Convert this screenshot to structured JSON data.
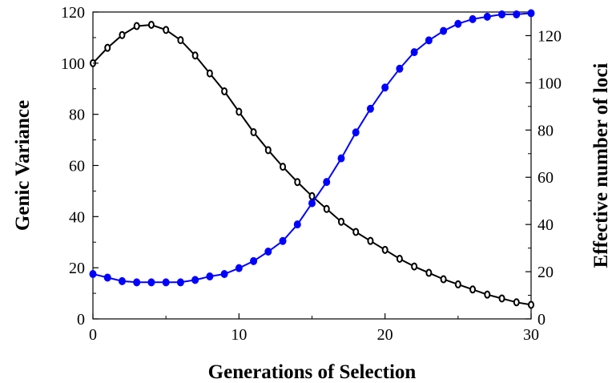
{
  "chart_data": {
    "type": "line",
    "xlabel": "Generations of Selection",
    "ylabel": "Genic Variance",
    "y2label": "Effective number of loci",
    "xlim": [
      0,
      30
    ],
    "ylim": [
      0,
      120
    ],
    "y2lim": [
      0,
      130
    ],
    "x_ticks": [
      0,
      10,
      20,
      30
    ],
    "y_ticks": [
      0,
      20,
      40,
      60,
      80,
      100,
      120
    ],
    "y2_ticks": [
      0,
      20,
      40,
      60,
      80,
      100,
      120
    ],
    "grid": false,
    "legend": "none",
    "x": [
      0,
      1,
      2,
      3,
      4,
      5,
      6,
      7,
      8,
      9,
      10,
      11,
      12,
      13,
      14,
      15,
      16,
      17,
      18,
      19,
      20,
      21,
      22,
      23,
      24,
      25,
      26,
      27,
      28,
      29,
      30
    ],
    "series": [
      {
        "axis": "left",
        "color": "#000000",
        "marker": "open-circle",
        "values": [
          100,
          106,
          111,
          114.5,
          115,
          113,
          109,
          103,
          96,
          89,
          81,
          73,
          66,
          59.5,
          53.5,
          48,
          43,
          38,
          34,
          30.5,
          27,
          23.5,
          20.5,
          18,
          15.5,
          13.5,
          11.5,
          9.5,
          8,
          6.5,
          5.5
        ]
      },
      {
        "axis": "right",
        "color": "#0000ff",
        "marker": "filled-circle",
        "values": [
          19,
          17.5,
          16,
          15.5,
          15.5,
          15.5,
          15.5,
          16.5,
          18,
          19,
          21.5,
          24.5,
          28.5,
          33,
          40,
          49,
          58,
          68,
          79,
          89,
          98,
          106,
          113,
          118,
          122,
          125,
          127,
          128,
          129,
          129,
          129.5
        ]
      }
    ]
  }
}
